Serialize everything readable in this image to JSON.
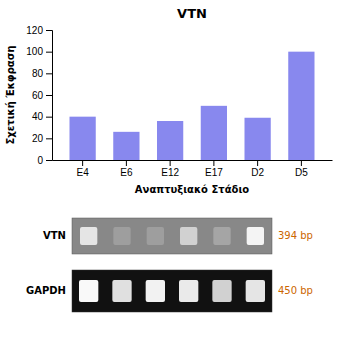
{
  "chart_data": {
    "type": "bar",
    "title": "VTN",
    "categories": [
      "E4",
      "E6",
      "E12",
      "E17",
      "D2",
      "D5"
    ],
    "values": [
      40,
      26,
      36,
      50,
      39,
      100
    ],
    "color": "#8888ee",
    "xlabel": "Αναπτυξιακό Στάδιο",
    "ylabel": "Σχετική Έκφραση",
    "ylim": [
      0,
      120
    ],
    "yticks": [
      0,
      20,
      40,
      60,
      80,
      100,
      120
    ],
    "gel": {
      "rows": [
        {
          "label": "VTN",
          "bp_label": "394 bp",
          "intensities": [
            0.9,
            0.62,
            0.62,
            0.82,
            0.65,
            0.96
          ]
        },
        {
          "label": "GAPDH",
          "bp_label": "450 bp",
          "intensities": [
            0.98,
            0.88,
            0.95,
            0.92,
            0.82,
            0.9
          ]
        }
      ]
    }
  }
}
